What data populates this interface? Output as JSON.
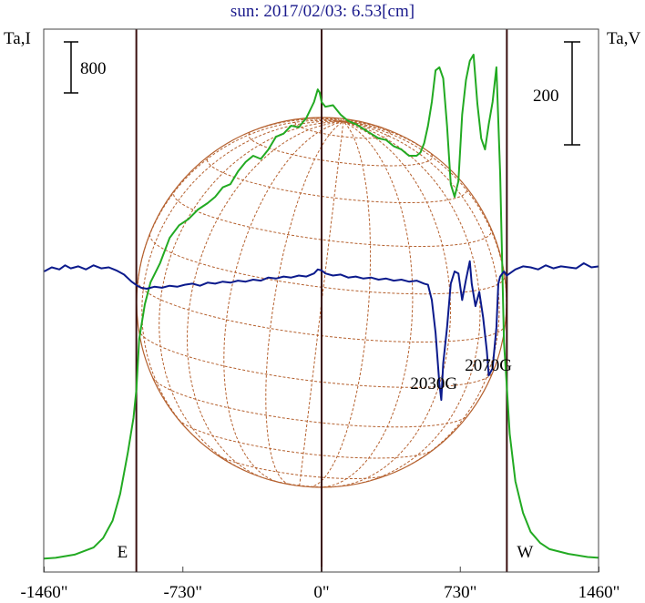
{
  "chart_data": {
    "type": "line",
    "title": "sun: 2017/02/03: 6.53[cm]",
    "left_axis_label": "Ta,I",
    "right_axis_label": "Ta,V",
    "scale_bar_I": "800",
    "scale_bar_V": "200",
    "x_ticks": [
      -1460,
      -730,
      0,
      730,
      1460
    ],
    "x_tick_labels": [
      "-1460\"",
      "-730\"",
      "0\"",
      "730\"",
      "1460\""
    ],
    "xlim": [
      -1460,
      1460
    ],
    "limb_markers": [
      {
        "label": "E",
        "x": -975
      },
      {
        "label": "W",
        "x": 975
      }
    ],
    "center_marker_x": 0,
    "annotations": [
      {
        "text": "2030G",
        "x": 625
      },
      {
        "text": "2070G",
        "x": 912
      }
    ],
    "colors": {
      "I": "#22aa22",
      "V": "#0b1a8c",
      "disk": "#b5612f",
      "title": "#1a1a8c",
      "marker": "#3a1010"
    },
    "series": [
      {
        "key": "I",
        "x": [
          -1460,
          -1400,
          -1300,
          -1200,
          -1150,
          -1100,
          -1060,
          -1020,
          -990,
          -975,
          -960,
          -930,
          -900,
          -850,
          -800,
          -750,
          -700,
          -650,
          -600,
          -560,
          -520,
          -480,
          -440,
          -400,
          -360,
          -320,
          -280,
          -240,
          -200,
          -160,
          -120,
          -80,
          -40,
          -20,
          -10,
          0,
          20,
          60,
          100,
          140,
          180,
          220,
          260,
          300,
          340,
          380,
          420,
          460,
          500,
          520,
          540,
          560,
          580,
          600,
          620,
          640,
          660,
          680,
          700,
          720,
          740,
          760,
          780,
          800,
          820,
          840,
          860,
          880,
          900,
          920,
          940,
          960,
          975,
          990,
          1020,
          1060,
          1100,
          1150,
          1200,
          1300,
          1400,
          1460
        ],
        "y": [
          10,
          15,
          35,
          80,
          140,
          250,
          420,
          680,
          900,
          1080,
          1400,
          1620,
          1760,
          1880,
          2040,
          2120,
          2160,
          2220,
          2260,
          2300,
          2360,
          2380,
          2460,
          2520,
          2560,
          2540,
          2600,
          2680,
          2700,
          2750,
          2740,
          2800,
          2900,
          2980,
          2960,
          2900,
          2870,
          2880,
          2820,
          2780,
          2760,
          2730,
          2700,
          2670,
          2660,
          2620,
          2600,
          2560,
          2560,
          2580,
          2640,
          2750,
          2900,
          3100,
          3120,
          3050,
          2750,
          2380,
          2300,
          2400,
          2820,
          3040,
          3160,
          3200,
          2890,
          2670,
          2600,
          2760,
          2900,
          3120,
          2450,
          1380,
          1100,
          800,
          500,
          300,
          180,
          110,
          70,
          40,
          20,
          15
        ]
      },
      {
        "key": "V",
        "x": [
          -1460,
          -1420,
          -1380,
          -1350,
          -1320,
          -1280,
          -1240,
          -1200,
          -1160,
          -1120,
          -1080,
          -1040,
          -1000,
          -970,
          -950,
          -920,
          -880,
          -840,
          -800,
          -760,
          -720,
          -680,
          -640,
          -600,
          -560,
          -520,
          -480,
          -440,
          -400,
          -360,
          -320,
          -280,
          -240,
          -200,
          -160,
          -120,
          -80,
          -40,
          -20,
          0,
          20,
          60,
          100,
          140,
          180,
          220,
          260,
          300,
          340,
          380,
          420,
          460,
          500,
          540,
          560,
          580,
          600,
          620,
          630,
          640,
          660,
          680,
          700,
          720,
          740,
          760,
          780,
          790,
          810,
          830,
          850,
          870,
          880,
          900,
          920,
          930,
          940,
          960,
          975,
          990,
          1020,
          1060,
          1100,
          1140,
          1180,
          1220,
          1260,
          1300,
          1340,
          1380,
          1420,
          1460
        ],
        "y": [
          0,
          4,
          2,
          6,
          3,
          5,
          2,
          6,
          3,
          4,
          1,
          -3,
          -10,
          -14,
          -16,
          -17,
          -15,
          -16,
          -14,
          -15,
          -13,
          -12,
          -14,
          -11,
          -12,
          -10,
          -11,
          -9,
          -10,
          -8,
          -9,
          -6,
          -7,
          -5,
          -6,
          -4,
          -5,
          -2,
          2,
          1,
          -2,
          -4,
          -3,
          -6,
          -5,
          -7,
          -6,
          -8,
          -7,
          -9,
          -8,
          -10,
          -9,
          -12,
          -13,
          -28,
          -60,
          -110,
          -126,
          -90,
          -55,
          -12,
          0,
          -2,
          -28,
          -8,
          10,
          -12,
          -34,
          -20,
          -45,
          -78,
          -102,
          -95,
          -55,
          -12,
          -5,
          0,
          -4,
          -2,
          2,
          5,
          4,
          2,
          6,
          3,
          5,
          4,
          3,
          8,
          4,
          5
        ]
      }
    ]
  }
}
